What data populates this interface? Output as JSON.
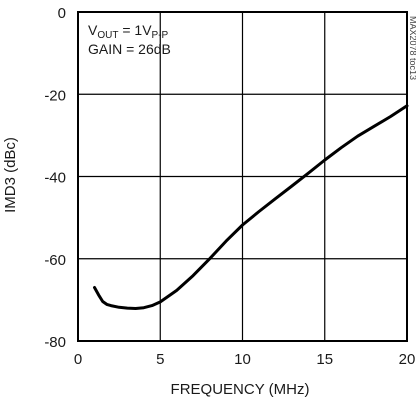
{
  "chart_data": {
    "type": "line",
    "title": "",
    "xlabel": "FREQUENCY (MHz)",
    "ylabel": "IMD3 (dBc)",
    "xlim": [
      0,
      20
    ],
    "ylim": [
      -80,
      0
    ],
    "xticks": [
      "0",
      "5",
      "10",
      "15",
      "20"
    ],
    "yticks": [
      "0",
      "-20",
      "-40",
      "-60",
      "-80"
    ],
    "grid": true,
    "annotations": {
      "vout_prefix": "V",
      "vout_sub": "OUT",
      "vout_mid": " = 1V",
      "vout_sub2": "P-P",
      "gain": "GAIN = 26dB"
    },
    "figure_id": "MAX2078 toc13",
    "series": [
      {
        "x": [
          1.0,
          1.25,
          1.5,
          1.75,
          2.0,
          2.5,
          3.0,
          3.5,
          4.0,
          4.5,
          5.0,
          6.0,
          7.0,
          8.0,
          9.0,
          10.0,
          11.0,
          12.0,
          13.0,
          14.0,
          15.0,
          16.0,
          17.0,
          18.0,
          19.0,
          20.0
        ],
        "y": [
          -67.0,
          -68.8,
          -70.4,
          -71.1,
          -71.4,
          -71.8,
          -72.0,
          -72.1,
          -71.9,
          -71.4,
          -70.5,
          -67.7,
          -64.1,
          -60.0,
          -55.7,
          -51.8,
          -48.5,
          -45.4,
          -42.3,
          -39.2,
          -36.0,
          -33.0,
          -30.2,
          -27.8,
          -25.4,
          -22.8
        ]
      }
    ]
  }
}
